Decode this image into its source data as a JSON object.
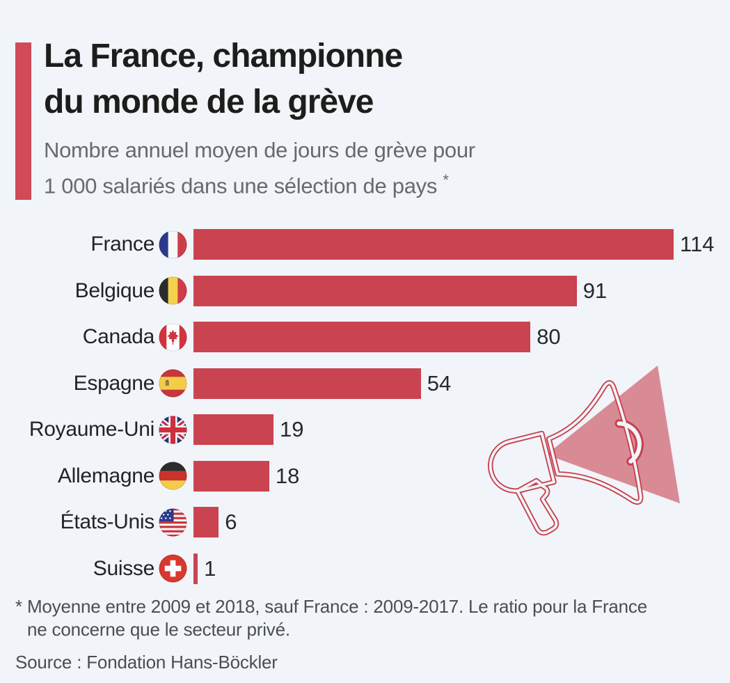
{
  "colors": {
    "background": "#f1f4f8",
    "bar": "#ca4350",
    "accent": "#d04a57",
    "title_text": "#1d1d1b",
    "subtitle_text": "#66696e",
    "label_text": "#202327",
    "value_text": "#26292d",
    "footnote_text": "#4a4e54",
    "megaphone_stroke": "#c7404e",
    "megaphone_triangle": "#c94a59"
  },
  "header": {
    "title_lines": [
      "La France, championne",
      "du monde de la grève"
    ],
    "subtitle_lines": [
      "Nombre annuel moyen de jours de grève pour",
      "1 000 salariés dans une sélection de pays"
    ],
    "footnote_marker": "*"
  },
  "chart_data": {
    "type": "bar",
    "orientation": "horizontal",
    "title": "La France, championne du monde de la grève",
    "subtitle": "Nombre annuel moyen de jours de grève pour 1 000 salariés dans une sélection de pays *",
    "categories": [
      "France",
      "Belgique",
      "Canada",
      "Espagne",
      "Royaume-Uni",
      "Allemagne",
      "États-Unis",
      "Suisse"
    ],
    "values": [
      114,
      91,
      80,
      54,
      19,
      18,
      6,
      1
    ],
    "xlim": [
      0,
      114
    ],
    "grid": false,
    "value_labels_shown": true,
    "flag_icons": [
      "france-flag-icon",
      "belgium-flag-icon",
      "canada-flag-icon",
      "spain-flag-icon",
      "uk-flag-icon",
      "germany-flag-icon",
      "usa-flag-icon",
      "switzerland-flag-icon"
    ]
  },
  "footer": {
    "footnote_lines": [
      "* Moyenne entre 2009 et 2018, sauf France : 2009-2017. Le ratio pour la France",
      "ne concerne que le secteur privé."
    ],
    "source": "Source : Fondation Hans-Böckler"
  }
}
